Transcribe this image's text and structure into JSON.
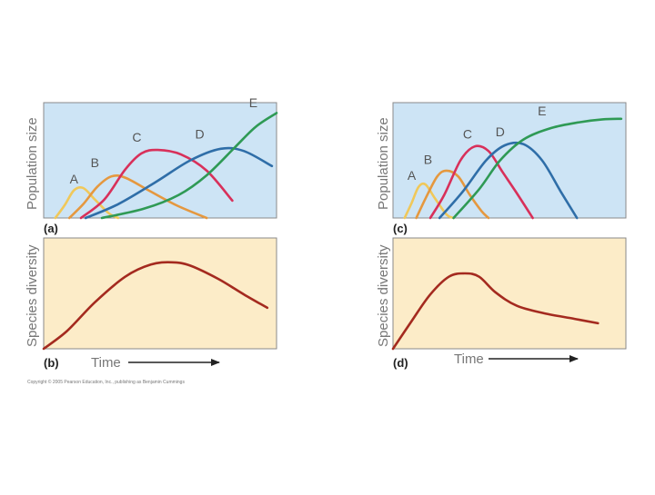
{
  "colors": {
    "population_bg": "#cde4f5",
    "diversity_bg": "#fcecc8",
    "frame": "#8a8a8a",
    "A": "#f0c85a",
    "B": "#e5983f",
    "C": "#d8305a",
    "D": "#2f6ea8",
    "E": "#2f9a55",
    "diversity": "#a42a1f",
    "arrow": "#222222"
  },
  "labels": {
    "population_size": "Population size",
    "species_diversity": "Species diversity",
    "time": "Time",
    "copyright": "Copyright © 2005 Pearson Education, Inc., publishing as Benjamin Cummings"
  },
  "chart_data": [
    {
      "panel": "(a)",
      "type": "line",
      "ylabel": "Population size",
      "xlim": [
        0,
        10
      ],
      "ylim": [
        0,
        10
      ],
      "series": [
        {
          "name": "A",
          "points": [
            [
              0.5,
              0
            ],
            [
              0.9,
              1.1
            ],
            [
              1.3,
              2.4
            ],
            [
              1.7,
              2.6
            ],
            [
              2.2,
              1.6
            ],
            [
              2.8,
              0.4
            ],
            [
              3.2,
              0
            ]
          ]
        },
        {
          "name": "B",
          "points": [
            [
              1.1,
              0
            ],
            [
              1.7,
              1.2
            ],
            [
              2.3,
              2.7
            ],
            [
              2.9,
              3.6
            ],
            [
              3.5,
              3.5
            ],
            [
              4.5,
              2.4
            ],
            [
              5.7,
              1.1
            ],
            [
              7.0,
              0
            ]
          ]
        },
        {
          "name": "C",
          "points": [
            [
              1.6,
              0
            ],
            [
              2.6,
              1.6
            ],
            [
              3.5,
              4.2
            ],
            [
              4.2,
              5.6
            ],
            [
              4.9,
              5.9
            ],
            [
              5.9,
              5.5
            ],
            [
              7.0,
              4.1
            ],
            [
              8.1,
              1.5
            ]
          ]
        },
        {
          "name": "D",
          "points": [
            [
              1.8,
              0
            ],
            [
              3.2,
              1.2
            ],
            [
              4.8,
              3.1
            ],
            [
              6.3,
              5.0
            ],
            [
              7.6,
              6.0
            ],
            [
              8.6,
              5.8
            ],
            [
              9.8,
              4.5
            ]
          ]
        },
        {
          "name": "E",
          "points": [
            [
              2.5,
              0
            ],
            [
              4.3,
              0.8
            ],
            [
              5.8,
              2.0
            ],
            [
              7.0,
              3.7
            ],
            [
              8.2,
              6.1
            ],
            [
              9.1,
              7.9
            ],
            [
              10.0,
              9.1
            ]
          ]
        }
      ],
      "curve_labels": [
        {
          "text": "A",
          "x": 1.3,
          "y": 3.0
        },
        {
          "text": "B",
          "x": 2.2,
          "y": 4.4
        },
        {
          "text": "C",
          "x": 4.0,
          "y": 6.6
        },
        {
          "text": "D",
          "x": 6.7,
          "y": 6.9
        },
        {
          "text": "E",
          "x": 9.0,
          "y": 9.6
        }
      ]
    },
    {
      "panel": "(b)",
      "type": "line",
      "ylabel": "Species diversity",
      "xlabel": "Time",
      "xlim": [
        0,
        10
      ],
      "ylim": [
        0,
        10
      ],
      "series": [
        {
          "name": "Species diversity",
          "points": [
            [
              0,
              0
            ],
            [
              1.0,
              1.6
            ],
            [
              2.2,
              4.2
            ],
            [
              3.5,
              6.5
            ],
            [
              4.6,
              7.6
            ],
            [
              5.5,
              7.8
            ],
            [
              6.3,
              7.5
            ],
            [
              7.5,
              6.3
            ],
            [
              8.6,
              4.9
            ],
            [
              9.6,
              3.7
            ]
          ]
        }
      ]
    },
    {
      "panel": "(c)",
      "type": "line",
      "ylabel": "Population size",
      "xlim": [
        0,
        10
      ],
      "ylim": [
        0,
        10
      ],
      "series": [
        {
          "name": "A",
          "points": [
            [
              0.5,
              0
            ],
            [
              0.8,
              1.3
            ],
            [
              1.1,
              2.7
            ],
            [
              1.4,
              2.9
            ],
            [
              1.8,
              1.7
            ],
            [
              2.3,
              0.3
            ],
            [
              2.6,
              0
            ]
          ]
        },
        {
          "name": "B",
          "points": [
            [
              1.0,
              0
            ],
            [
              1.4,
              1.7
            ],
            [
              1.9,
              3.6
            ],
            [
              2.3,
              4.1
            ],
            [
              2.8,
              3.6
            ],
            [
              3.3,
              2.0
            ],
            [
              3.8,
              0.6
            ],
            [
              4.1,
              0
            ]
          ]
        },
        {
          "name": "C",
          "points": [
            [
              1.6,
              0
            ],
            [
              2.2,
              2.0
            ],
            [
              2.9,
              5.0
            ],
            [
              3.5,
              6.2
            ],
            [
              4.1,
              5.8
            ],
            [
              4.7,
              4.0
            ],
            [
              5.3,
              2.2
            ],
            [
              6.0,
              0
            ]
          ]
        },
        {
          "name": "D",
          "points": [
            [
              2.0,
              0
            ],
            [
              3.0,
              2.3
            ],
            [
              4.0,
              5.0
            ],
            [
              4.8,
              6.3
            ],
            [
              5.6,
              6.4
            ],
            [
              6.4,
              5.0
            ],
            [
              7.2,
              2.3
            ],
            [
              7.9,
              0
            ]
          ]
        },
        {
          "name": "E",
          "points": [
            [
              2.6,
              0
            ],
            [
              3.7,
              2.5
            ],
            [
              4.6,
              5.0
            ],
            [
              5.6,
              6.8
            ],
            [
              6.8,
              7.8
            ],
            [
              8.0,
              8.3
            ],
            [
              9.0,
              8.55
            ],
            [
              9.8,
              8.6
            ]
          ]
        }
      ],
      "curve_labels": [
        {
          "text": "A",
          "x": 0.8,
          "y": 3.3
        },
        {
          "text": "B",
          "x": 1.5,
          "y": 4.7
        },
        {
          "text": "C",
          "x": 3.2,
          "y": 6.9
        },
        {
          "text": "D",
          "x": 4.6,
          "y": 7.1
        },
        {
          "text": "E",
          "x": 6.4,
          "y": 8.9
        }
      ]
    },
    {
      "panel": "(d)",
      "type": "line",
      "ylabel": "Species diversity",
      "xlabel": "Time",
      "xlim": [
        0,
        10
      ],
      "ylim": [
        0,
        10
      ],
      "series": [
        {
          "name": "Species diversity",
          "points": [
            [
              0,
              0
            ],
            [
              0.8,
              2.5
            ],
            [
              1.6,
              4.9
            ],
            [
              2.4,
              6.5
            ],
            [
              3.1,
              6.8
            ],
            [
              3.7,
              6.5
            ],
            [
              4.4,
              5.1
            ],
            [
              5.3,
              3.9
            ],
            [
              6.5,
              3.2
            ],
            [
              7.8,
              2.7
            ],
            [
              8.8,
              2.3
            ]
          ]
        }
      ]
    }
  ]
}
